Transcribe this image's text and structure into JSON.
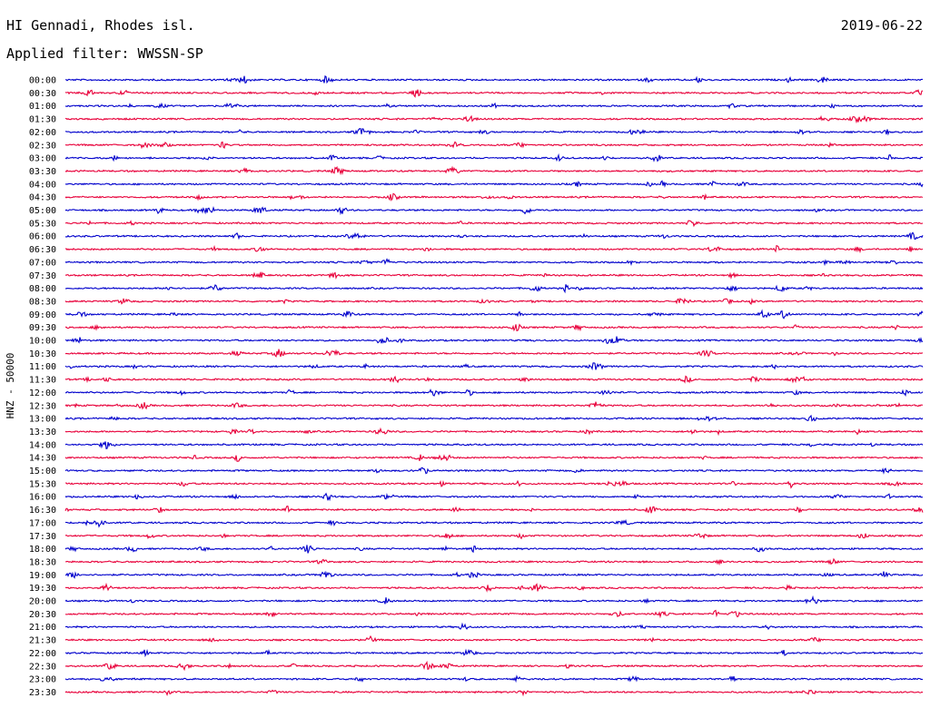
{
  "header": {
    "station": "HI Gennadi, Rhodes isl.",
    "date": "2019-06-22",
    "filter": "Applied filter: WWSSN-SP"
  },
  "colors": {
    "trace_odd": "#0000cc",
    "trace_even": "#e8003a",
    "text": "#000000",
    "background": "#ffffff"
  },
  "chart_data": {
    "type": "line",
    "title": "HI Gennadi, Rhodes isl.",
    "subtitle": "Applied filter: WWSSN-SP",
    "ylabel": "HNZ - 50000",
    "xlabel": "",
    "grid": false,
    "rows": [
      "00:00",
      "00:30",
      "01:00",
      "01:30",
      "02:00",
      "02:30",
      "03:00",
      "03:30",
      "04:00",
      "04:30",
      "05:00",
      "05:30",
      "06:00",
      "06:30",
      "07:00",
      "07:30",
      "08:00",
      "08:30",
      "09:00",
      "09:30",
      "10:00",
      "10:30",
      "11:00",
      "11:30",
      "12:00",
      "12:30",
      "13:00",
      "13:30",
      "14:00",
      "14:30",
      "15:00",
      "15:30",
      "16:00",
      "16:30",
      "17:00",
      "17:30",
      "18:00",
      "18:30",
      "19:00",
      "19:30",
      "20:00",
      "20:30",
      "21:00",
      "21:30",
      "22:00",
      "22:30",
      "23:00",
      "23:30"
    ],
    "row_colors": [
      "blue",
      "red"
    ]
  }
}
